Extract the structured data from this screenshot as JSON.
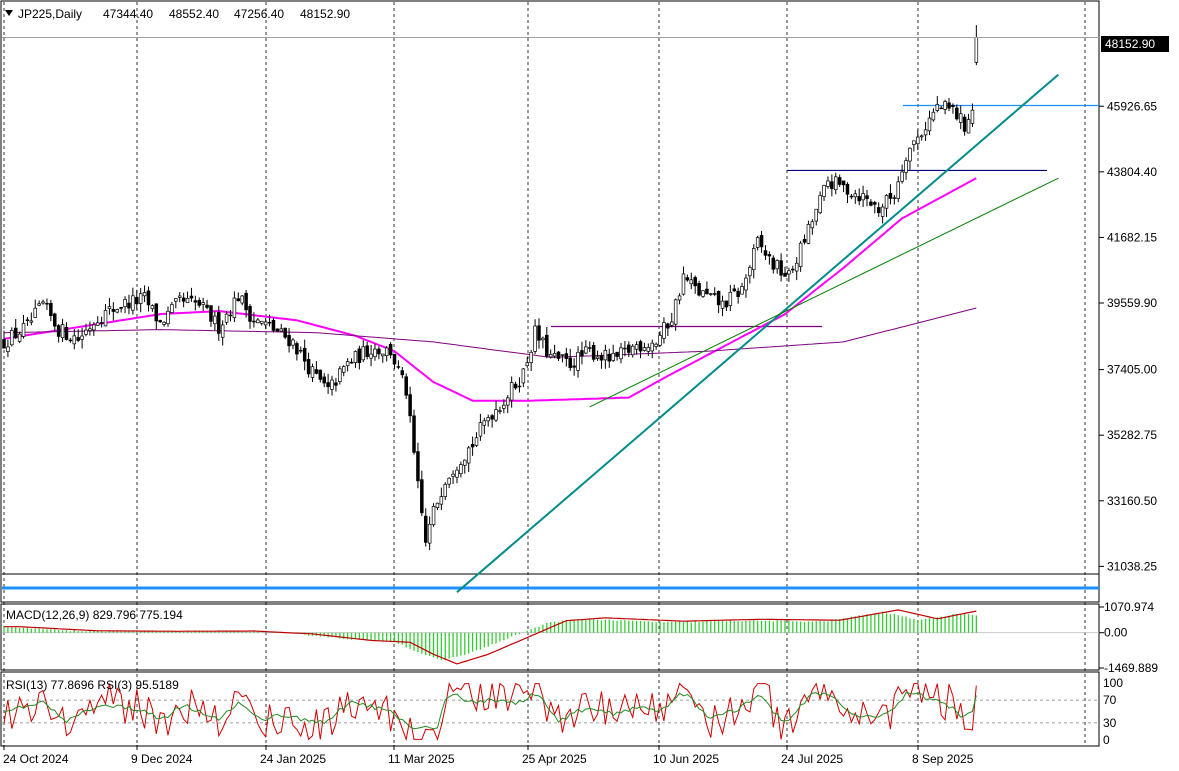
{
  "chart_data": {
    "type": "candlestick",
    "symbol": "JP225",
    "timeframe": "Daily",
    "header": {
      "title": "JP225,Daily",
      "open": "47344.40",
      "high": "48552.40",
      "low": "47256.40",
      "close": "48152.90"
    },
    "current_price_label": "48152.90",
    "price_axis_ticks": [
      "45926.65",
      "43804.40",
      "41682.15",
      "39559.90",
      "37405.00",
      "35282.75",
      "33160.50",
      "31038.25"
    ],
    "price_range": [
      29950,
      49300
    ],
    "date_ticks": [
      "24 Oct 2024",
      "9 Dec 2024",
      "24 Jan 2025",
      "11 Mar 2025",
      "25 Apr 2025",
      "10 Jun 2025",
      "24 Jul 2025",
      "8 Sep 2025"
    ],
    "grid": "vertical dashed",
    "price_keypoints": [
      [
        0,
        38300
      ],
      [
        6,
        38800
      ],
      [
        10,
        39500
      ],
      [
        14,
        38700
      ],
      [
        19,
        38400
      ],
      [
        24,
        39100
      ],
      [
        30,
        39500
      ],
      [
        36,
        39700
      ],
      [
        40,
        38900
      ],
      [
        45,
        39600
      ],
      [
        50,
        39500
      ],
      [
        55,
        38800
      ],
      [
        60,
        39800
      ],
      [
        64,
        39000
      ],
      [
        68,
        38800
      ],
      [
        74,
        38300
      ],
      [
        79,
        37300
      ],
      [
        83,
        36700
      ],
      [
        88,
        37600
      ],
      [
        94,
        38100
      ],
      [
        99,
        38000
      ],
      [
        103,
        36700
      ],
      [
        106,
        33600
      ],
      [
        108,
        31800
      ],
      [
        110,
        32800
      ],
      [
        113,
        33900
      ],
      [
        116,
        34400
      ],
      [
        120,
        35000
      ],
      [
        124,
        35900
      ],
      [
        128,
        36400
      ],
      [
        133,
        37300
      ],
      [
        136,
        38600
      ],
      [
        140,
        37800
      ],
      [
        145,
        37600
      ],
      [
        150,
        38000
      ],
      [
        156,
        37700
      ],
      [
        162,
        38200
      ],
      [
        167,
        38300
      ],
      [
        171,
        39100
      ],
      [
        174,
        40400
      ],
      [
        178,
        39900
      ],
      [
        184,
        39500
      ],
      [
        189,
        40000
      ],
      [
        193,
        41500
      ],
      [
        197,
        40800
      ],
      [
        201,
        40400
      ],
      [
        206,
        41900
      ],
      [
        211,
        43500
      ],
      [
        215,
        43300
      ],
      [
        220,
        43000
      ],
      [
        224,
        42600
      ],
      [
        228,
        43100
      ],
      [
        231,
        44400
      ],
      [
        235,
        45100
      ],
      [
        239,
        45900
      ],
      [
        243,
        45800
      ],
      [
        246,
        45300
      ],
      [
        248,
        45800
      ],
      [
        249,
        48152
      ]
    ],
    "moving_averages": [
      {
        "color": "#ff00ff",
        "keypoints": [
          [
            0,
            38400
          ],
          [
            20,
            38800
          ],
          [
            40,
            39200
          ],
          [
            55,
            39300
          ],
          [
            75,
            39000
          ],
          [
            90,
            38500
          ],
          [
            100,
            38000
          ],
          [
            110,
            37000
          ],
          [
            120,
            36400
          ],
          [
            135,
            36400
          ],
          [
            160,
            36500
          ],
          [
            170,
            37200
          ],
          [
            185,
            38200
          ],
          [
            200,
            39200
          ],
          [
            215,
            40700
          ],
          [
            230,
            42300
          ],
          [
            249,
            43600
          ]
        ]
      },
      {
        "color": "#800080",
        "keypoints": [
          [
            0,
            38600
          ],
          [
            40,
            38700
          ],
          [
            80,
            38600
          ],
          [
            110,
            38300
          ],
          [
            140,
            37800
          ],
          [
            180,
            38000
          ],
          [
            215,
            38300
          ],
          [
            249,
            39400
          ]
        ]
      }
    ],
    "horizontal_levels": [
      {
        "price": 45950,
        "color": "#1e90ff"
      },
      {
        "price": 43850,
        "color": "#000080"
      },
      {
        "price": 38800,
        "color": "#800080"
      }
    ],
    "trendlines": [
      {
        "color": "#008b8b",
        "from": [
          116,
          30200
        ],
        "to": [
          270,
          46950
        ]
      },
      {
        "color": "#008000",
        "from": [
          150,
          36200
        ],
        "to": [
          270,
          43600
        ]
      }
    ],
    "bottom_lines": [
      {
        "price": 30800,
        "color": "#000000"
      },
      {
        "price": 30320,
        "color": "#1e90ff"
      }
    ],
    "macd": {
      "label": "MACD(12,26,9) 829.796 775.194",
      "ticks": [
        "1070.974",
        "0.00",
        "-1469.889"
      ],
      "range": [
        -1469.889,
        1070.974
      ],
      "keypoints": [
        [
          0,
          250
        ],
        [
          20,
          80
        ],
        [
          40,
          60
        ],
        [
          60,
          70
        ],
        [
          75,
          -50
        ],
        [
          90,
          -320
        ],
        [
          100,
          -400
        ],
        [
          106,
          -900
        ],
        [
          112,
          -1300
        ],
        [
          120,
          -900
        ],
        [
          130,
          -200
        ],
        [
          140,
          500
        ],
        [
          150,
          620
        ],
        [
          170,
          480
        ],
        [
          190,
          560
        ],
        [
          210,
          520
        ],
        [
          225,
          950
        ],
        [
          235,
          580
        ],
        [
          245,
          900
        ],
        [
          249,
          830
        ]
      ]
    },
    "rsi": {
      "label": "RSI(13) 77.8696  RSI(3) 95.5189",
      "ticks": [
        "100",
        "70",
        "30",
        "0"
      ],
      "levels": [
        70,
        30
      ]
    }
  }
}
